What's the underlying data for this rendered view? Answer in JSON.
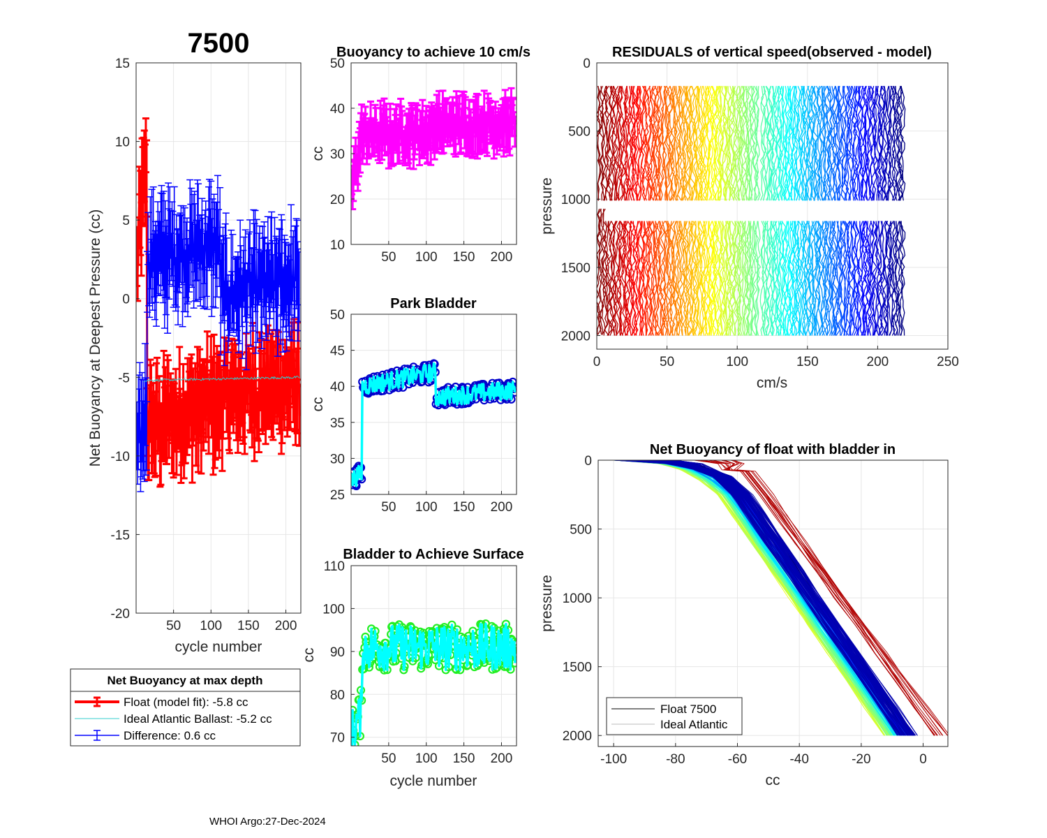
{
  "figure_title": "7500",
  "footer": "WHOI Argo:27-Dec-2024",
  "colors": {
    "float": "#ff0000",
    "ideal": "#33cccc",
    "difference": "#0000ff",
    "buoyancy": "#ff00ff",
    "park_marker": "#0000cc",
    "park_line": "#00ffff",
    "surface_marker": "#22ee22",
    "surface_line": "#00ffff"
  },
  "chart_data": [
    {
      "id": "net-buoyancy",
      "type": "line",
      "title": "",
      "xlabel": "cycle number",
      "ylabel": "Net Buoyancy at Deepest Pressure (cc)",
      "xlim": [
        0,
        220
      ],
      "ylim": [
        -20,
        15
      ],
      "xticks": [
        50,
        100,
        150,
        200
      ],
      "yticks": [
        15,
        10,
        5,
        0,
        -5,
        -10,
        -15,
        -20
      ],
      "series": [
        {
          "name": "Float (model fit)",
          "segments": [
            [
              1,
              14,
              2,
              9
            ],
            [
              15,
              112,
              -8.2,
              -6.5
            ],
            [
              113,
              218,
              -6.2,
              -5.4
            ]
          ],
          "noise": 2.2,
          "err": 2.5
        },
        {
          "name": "Ideal Atlantic Ballast",
          "segments": [
            [
              10,
              218,
              -5.2,
              -5.0
            ]
          ],
          "noise": 0.08
        },
        {
          "name": "Difference",
          "segments": [
            [
              1,
              14,
              -10,
              -7
            ],
            [
              15,
              112,
              2.5,
              3.5
            ],
            [
              113,
              218,
              0.3,
              1.2
            ]
          ],
          "noise": 2.0,
          "err": 3.0
        }
      ],
      "legend": {
        "title": "Net Buoyancy at max depth",
        "entries": [
          {
            "label": "Float (model fit):  -5.8 cc",
            "value": -5.8
          },
          {
            "label": "Ideal Atlantic Ballast:  -5.2 cc",
            "value": -5.2
          },
          {
            "label": "Difference:   0.6 cc",
            "value": 0.6
          }
        ]
      }
    },
    {
      "id": "buoyancy-10cms",
      "type": "line",
      "title": "Buoyancy to achieve 10 cm/s",
      "xlabel": "",
      "ylabel": "cc",
      "xlim": [
        0,
        220
      ],
      "ylim": [
        10,
        50
      ],
      "xticks": [
        50,
        100,
        150,
        200
      ],
      "yticks": [
        50,
        40,
        30,
        20,
        10
      ],
      "series": [
        {
          "name": "Buoyancy",
          "segments": [
            [
              1,
              14,
              22,
              34
            ],
            [
              15,
              112,
              34,
              35
            ],
            [
              113,
              218,
              36,
              37
            ]
          ],
          "noise": 3.5,
          "err": 4.5
        }
      ]
    },
    {
      "id": "park-bladder",
      "type": "line",
      "title": "Park Bladder",
      "xlabel": "",
      "ylabel": "cc",
      "xlim": [
        0,
        220
      ],
      "ylim": [
        25,
        50
      ],
      "xticks": [
        50,
        100,
        150,
        200
      ],
      "yticks": [
        50,
        45,
        40,
        35,
        30,
        25
      ],
      "series": [
        {
          "name": "Park Bladder",
          "segments": [
            [
              1,
              14,
              27,
              28
            ],
            [
              15,
              112,
              40,
              42
            ],
            [
              113,
              218,
              38.5,
              39.5
            ]
          ],
          "noise": 1.3
        }
      ]
    },
    {
      "id": "bladder-surface",
      "type": "line",
      "title": "Bladder to Achieve Surface",
      "xlabel": "cycle number",
      "ylabel": "cc",
      "xlim": [
        0,
        220
      ],
      "ylim": [
        68,
        110
      ],
      "xticks": [
        50,
        100,
        150,
        200
      ],
      "yticks": [
        110,
        100,
        90,
        80,
        70
      ],
      "series": [
        {
          "name": "Surface Bladder",
          "segments": [
            [
              1,
              14,
              71,
              76
            ],
            [
              15,
              218,
              91,
              91
            ]
          ],
          "noise": 5.5
        }
      ]
    },
    {
      "id": "residuals",
      "type": "line",
      "title": "RESIDUALS of vertical speed(observed - model)",
      "xlabel": "cm/s",
      "ylabel": "pressure",
      "xlim": [
        0,
        250
      ],
      "ylim": [
        0,
        2100
      ],
      "y_reversed": true,
      "xticks": [
        0,
        50,
        100,
        150,
        200,
        250
      ],
      "yticks": [
        0,
        500,
        1000,
        1500,
        2000
      ],
      "profiles": {
        "cycle_range": [
          1,
          218
        ],
        "upper_pressure": [
          170,
          1020
        ],
        "lower_pressure": [
          1160,
          2000
        ],
        "colormap": "jet-reversed"
      }
    },
    {
      "id": "net-buoyancy-profile",
      "type": "line",
      "title": "Net Buoyancy of float with bladder in",
      "xlabel": "cc",
      "ylabel": "pressure",
      "xlim": [
        -105,
        8
      ],
      "ylim": [
        0,
        2080
      ],
      "y_reversed": true,
      "xticks": [
        -100,
        -80,
        -60,
        -40,
        -20,
        0
      ],
      "yticks": [
        0,
        500,
        1000,
        1500,
        2000
      ],
      "legend": {
        "entries": [
          {
            "label": "Float 7500"
          },
          {
            "label": "Ideal Atlantic"
          }
        ]
      },
      "profiles": {
        "surface_x": [
          -100,
          -68
        ],
        "deep_x_range": [
          -12,
          7
        ],
        "pressure_max": 2000
      }
    }
  ]
}
